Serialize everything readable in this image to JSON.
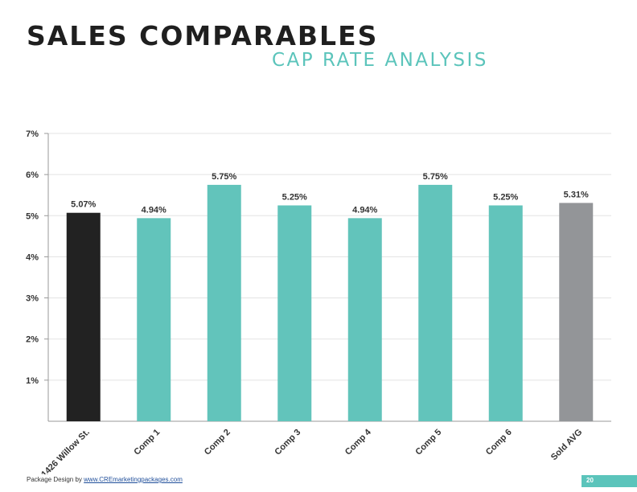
{
  "header": {
    "title": "SALES COMPARABLES",
    "subtitle": "CAP RATE ANALYSIS"
  },
  "chart_data": {
    "type": "bar",
    "categories": [
      "1426 Willow St.",
      "Comp 1",
      "Comp 2",
      "Comp 3",
      "Comp 4",
      "Comp 5",
      "Comp 6",
      "Sold AVG"
    ],
    "values": [
      5.07,
      4.94,
      5.75,
      5.25,
      4.94,
      5.75,
      5.25,
      5.31
    ],
    "data_labels": [
      "5.07%",
      "4.94%",
      "5.75%",
      "5.25%",
      "4.94%",
      "5.75%",
      "5.25%",
      "5.31%"
    ],
    "bar_colors": [
      "#222222",
      "#62c4bb",
      "#62c4bb",
      "#62c4bb",
      "#62c4bb",
      "#62c4bb",
      "#62c4bb",
      "#939598"
    ],
    "yticks": [
      1,
      2,
      3,
      4,
      5,
      6,
      7
    ],
    "ytick_labels": [
      "1%",
      "2%",
      "3%",
      "4%",
      "5%",
      "6%",
      "7%"
    ],
    "ylim": [
      0,
      7
    ],
    "grid": true,
    "legend": false
  },
  "footer": {
    "prefix": "Package Design by ",
    "link_text": "www.CREmarketingpackages.com",
    "page_number": "20"
  },
  "colors": {
    "accent": "#5bc4bb",
    "title": "#1f1f1f"
  }
}
